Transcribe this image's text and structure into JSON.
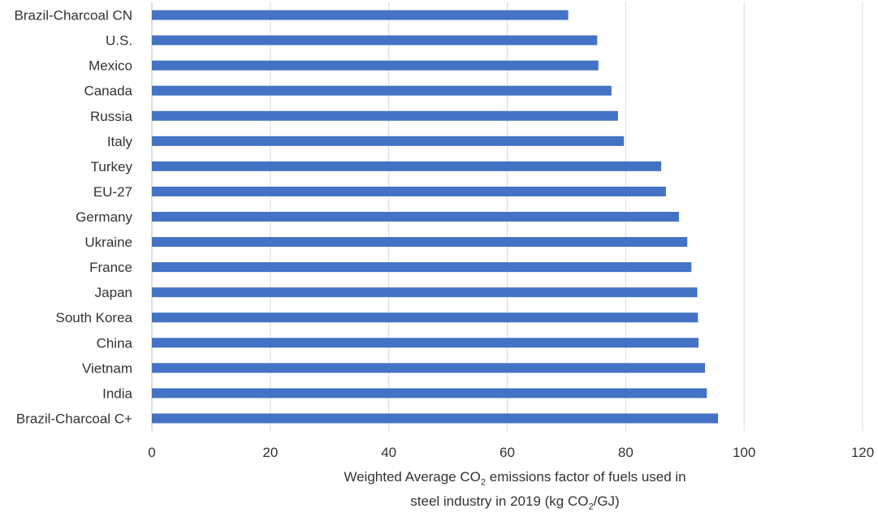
{
  "chart_data": {
    "type": "bar",
    "orientation": "horizontal",
    "categories": [
      "Brazil-Charcoal CN",
      "U.S.",
      "Mexico",
      "Canada",
      "Russia",
      "Italy",
      "Turkey",
      "EU-27",
      "Germany",
      "Ukraine",
      "France",
      "Japan",
      "South Korea",
      "China",
      "Vietnam",
      "India",
      "Brazil-Charcoal C+"
    ],
    "values": [
      70.3,
      75.2,
      75.4,
      77.6,
      78.7,
      79.7,
      86.0,
      86.8,
      89.0,
      90.4,
      91.1,
      92.1,
      92.2,
      92.3,
      93.4,
      93.7,
      95.6
    ],
    "xlim": [
      0,
      120
    ],
    "xticks": [
      "0",
      "20",
      "40",
      "60",
      "80",
      "100",
      "120"
    ],
    "xlabel_parts": {
      "line1_a": "Weighted Average CO",
      "line1_sub": "2",
      "line1_b": " emissions factor of fuels used in",
      "line2_a": "steel industry in 2019 (kg CO",
      "line2_sub": "2",
      "line2_b": "/GJ)"
    },
    "grid": "vertical",
    "bar_color": "#4472C4"
  }
}
